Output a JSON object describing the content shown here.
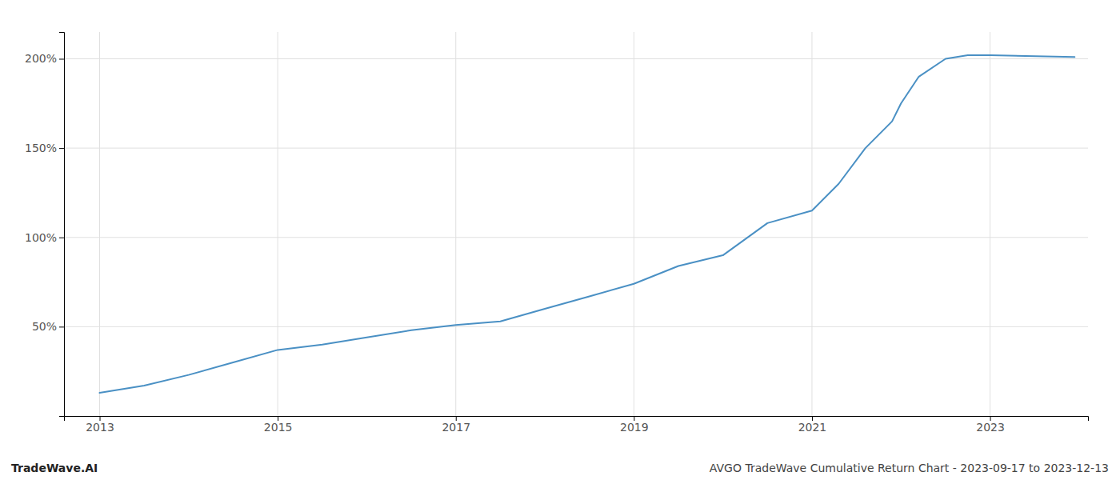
{
  "chart_data": {
    "type": "line",
    "title": "AVGO TradeWave Cumulative Return Chart - 2023-09-17 to 2023-12-13",
    "annotations": [
      "TradeWave.AI"
    ],
    "x": [
      2013,
      2013.5,
      2014,
      2014.5,
      2015,
      2015.5,
      2016,
      2016.5,
      2017,
      2017.5,
      2018,
      2018.5,
      2019,
      2019.5,
      2020,
      2020.5,
      2021,
      2021.3,
      2021.6,
      2021.9,
      2022,
      2022.2,
      2022.5,
      2022.75,
      2023,
      2023.95
    ],
    "values": [
      13,
      17,
      23,
      30,
      37,
      40,
      44,
      48,
      51,
      53,
      60,
      67,
      74,
      84,
      90,
      108,
      115,
      130,
      150,
      165,
      175,
      190,
      200,
      202,
      202,
      201
    ],
    "color": "#4a90c4",
    "xlim": [
      2012.6,
      2024.1
    ],
    "xticks": [
      2013,
      2015,
      2017,
      2019,
      2021,
      2023
    ],
    "ylim": [
      0,
      215
    ],
    "yticks": [
      {
        "value": 50,
        "label": "50%"
      },
      {
        "value": 100,
        "label": "100%"
      },
      {
        "value": 150,
        "label": "150%"
      },
      {
        "value": 200,
        "label": "200%"
      }
    ],
    "grid": true
  }
}
